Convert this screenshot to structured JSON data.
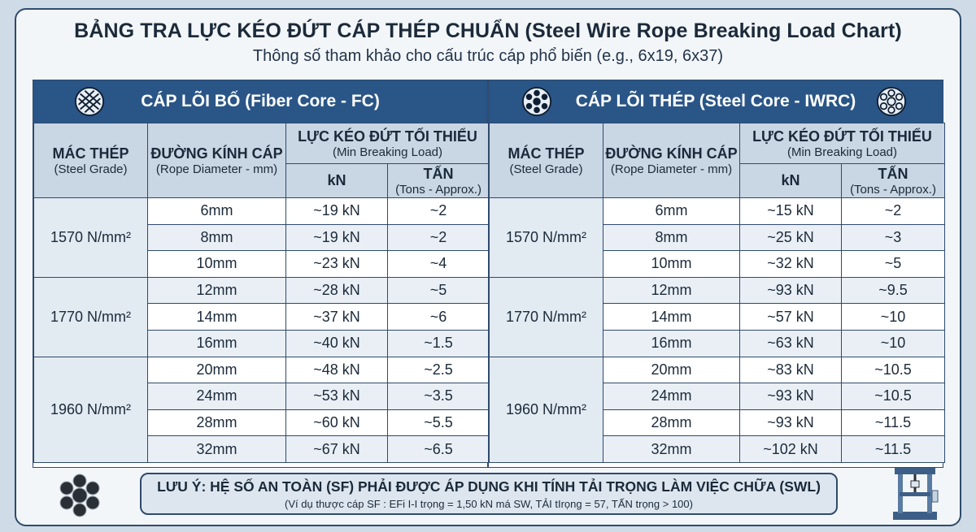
{
  "title": "BẢNG TRA LỰC KÉO ĐỨT CÁP THÉP CHUẨN (Steel Wire Rope Breaking Load Chart)",
  "subtitle": "Thông số tham khảo cho cấu trúc cáp phổ biến (e.g., 6x19, 6x37)",
  "headers": {
    "grade_vi": "MÁC THÉP",
    "grade_en": "(Steel Grade)",
    "diameter_vi": "ĐƯỜNG KÍNH CÁP",
    "diameter_en": "(Rope Diameter - mm)",
    "load_vi": "LỰC KÉO ĐỨT TỐI THIỂU",
    "load_en": "(Min Breaking Load)",
    "kn": "kN",
    "tons_vi": "TẤN",
    "tons_en": "(Tons - Approx.)"
  },
  "icons": {
    "fiber": "fiber-core-rope-icon",
    "steel": "steel-core-rope-icon",
    "rope": "wire-rope-cross-section-icon",
    "machine": "tensile-test-machine-icon"
  },
  "colors": {
    "band": "#2a5587",
    "header": "#c9d6e3",
    "grade": "#e2eaf2",
    "border": "#2f4a6c"
  },
  "fiber_core": {
    "title": "CÁP LÕI BỐ (Fiber Core - FC)",
    "groups": [
      {
        "grade": "1570 N/mm²",
        "rows": [
          {
            "diameter": "6mm",
            "kn": "~19 kN",
            "tons": "~2"
          },
          {
            "diameter": "8mm",
            "kn": "~19 kN",
            "tons": "~2"
          },
          {
            "diameter": "10mm",
            "kn": "~23 kN",
            "tons": "~4"
          }
        ]
      },
      {
        "grade": "1770 N/mm²",
        "rows": [
          {
            "diameter": "12mm",
            "kn": "~28 kN",
            "tons": "~5"
          },
          {
            "diameter": "14mm",
            "kn": "~37 kN",
            "tons": "~6"
          },
          {
            "diameter": "16mm",
            "kn": "~40 kN",
            "tons": "~1.5"
          }
        ]
      },
      {
        "grade": "1960 N/mm²",
        "rows": [
          {
            "diameter": "20mm",
            "kn": "~48 kN",
            "tons": "~2.5"
          },
          {
            "diameter": "24mm",
            "kn": "~53 kN",
            "tons": "~3.5"
          },
          {
            "diameter": "28mm",
            "kn": "~60 kN",
            "tons": "~5.5"
          },
          {
            "diameter": "32mm",
            "kn": "~67 kN",
            "tons": "~6.5"
          }
        ]
      }
    ]
  },
  "steel_core": {
    "title": "CÁP LÕI THÉP (Steel Core - IWRC)",
    "groups": [
      {
        "grade": "1570 N/mm²",
        "rows": [
          {
            "diameter": "6mm",
            "kn": "~15 kN",
            "tons": "~2"
          },
          {
            "diameter": "8mm",
            "kn": "~25 kN",
            "tons": "~3"
          },
          {
            "diameter": "10mm",
            "kn": "~32 kN",
            "tons": "~5"
          }
        ]
      },
      {
        "grade": "1770 N/mm²",
        "rows": [
          {
            "diameter": "12mm",
            "kn": "~93 kN",
            "tons": "~9.5"
          },
          {
            "diameter": "14mm",
            "kn": "~57 kN",
            "tons": "~10"
          },
          {
            "diameter": "16mm",
            "kn": "~63 kN",
            "tons": "~10"
          }
        ]
      },
      {
        "grade": "1960 N/mm²",
        "rows": [
          {
            "diameter": "20mm",
            "kn": "~83 kN",
            "tons": "~10.5"
          },
          {
            "diameter": "24mm",
            "kn": "~93 kN",
            "tons": "~10.5"
          },
          {
            "diameter": "28mm",
            "kn": "~93 kN",
            "tons": "~11.5"
          },
          {
            "diameter": "32mm",
            "kn": "~102 kN",
            "tons": "~11.5"
          }
        ]
      }
    ]
  },
  "note": {
    "heading": "LƯU Ý: HỆ SỐ AN TOÀN (SF) PHẢI ĐƯỢC ÁP DỤNG KHI TÍNH TẢI TRỌNG LÀM VIỆC CHỮA (SWL)",
    "example": "(Ví dụ thược cáp SF : EFi I-I trọng = 1,50 kN má SW, TẢI tIrọng = 57, TẤN trọng > 100)"
  }
}
